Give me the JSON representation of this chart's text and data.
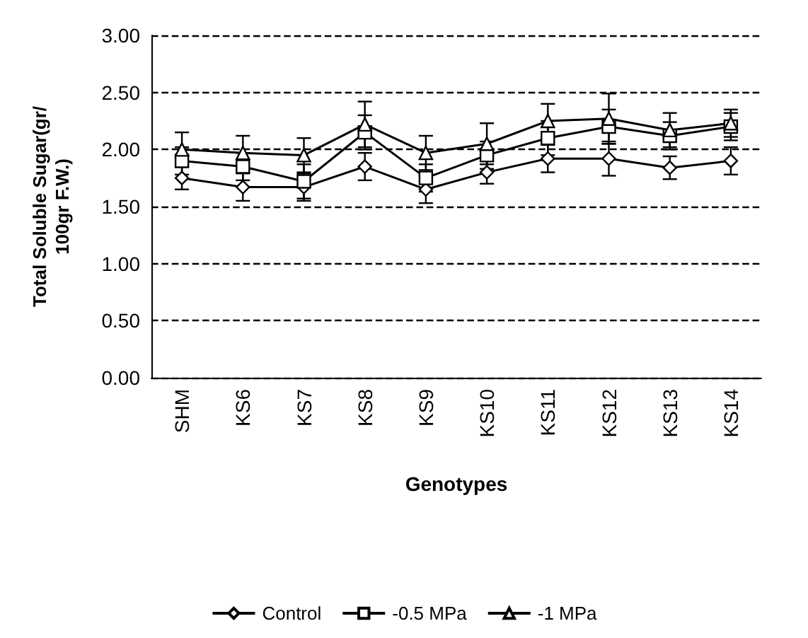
{
  "chart_data": {
    "type": "line",
    "xlabel": "Genotypes",
    "ylabel": "Total Soluble Sugar(gr/\n100gr F.W.)",
    "categories": [
      "SHM",
      "KS6",
      "KS7",
      "KS8",
      "KS9",
      "KS10",
      "KS11",
      "KS12",
      "KS13",
      "KS14"
    ],
    "series": [
      {
        "name": "Control",
        "color": "#000000",
        "marker": "diamond",
        "values": [
          1.75,
          1.67,
          1.67,
          1.85,
          1.65,
          1.8,
          1.92,
          1.92,
          1.84,
          1.9
        ],
        "errors": [
          0.1,
          0.12,
          0.12,
          0.12,
          0.12,
          0.1,
          0.12,
          0.15,
          0.1,
          0.12
        ]
      },
      {
        "name": "-0.5 MPa",
        "color": "#000000",
        "marker": "square",
        "values": [
          1.9,
          1.85,
          1.72,
          2.15,
          1.75,
          1.95,
          2.1,
          2.2,
          2.12,
          2.2
        ],
        "errors": [
          0.12,
          0.12,
          0.15,
          0.15,
          0.12,
          0.12,
          0.15,
          0.15,
          0.12,
          0.12
        ]
      },
      {
        "name": "-1 MPa",
        "color": "#000000",
        "marker": "triangle",
        "values": [
          2.0,
          1.97,
          1.95,
          2.22,
          1.97,
          2.05,
          2.25,
          2.27,
          2.17,
          2.23
        ],
        "errors": [
          0.15,
          0.15,
          0.15,
          0.2,
          0.15,
          0.18,
          0.15,
          0.22,
          0.15,
          0.12
        ]
      }
    ],
    "ylim": [
      0,
      3
    ],
    "yticks": [
      {
        "value": 0,
        "label": "0.00"
      },
      {
        "value": 0.5,
        "label": "0.50"
      },
      {
        "value": 1,
        "label": "1.00"
      },
      {
        "value": 1.5,
        "label": "1.50"
      },
      {
        "value": 2,
        "label": "2.00"
      },
      {
        "value": 2.5,
        "label": "2.50"
      },
      {
        "value": 3,
        "label": "3.00"
      }
    ],
    "grid": "y",
    "legend": "bottom",
    "line_style": "solid"
  }
}
